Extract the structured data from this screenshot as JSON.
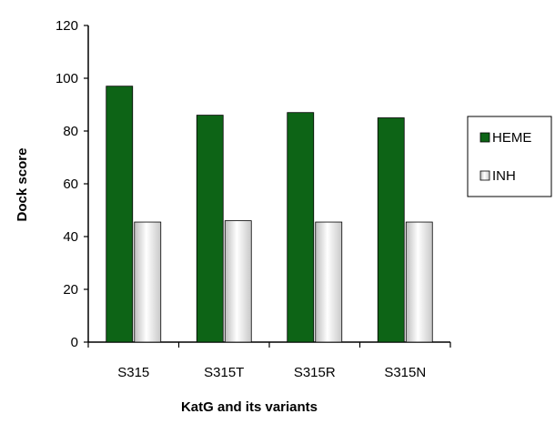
{
  "chart_data": {
    "type": "bar",
    "title": "",
    "xlabel": "KatG  and its  variants",
    "ylabel": "Dock score",
    "categories": [
      "S315",
      "S315T",
      "S315R",
      "S315N"
    ],
    "series": [
      {
        "name": "HEME",
        "values": [
          97,
          86,
          87,
          85
        ],
        "color": "#0d6416"
      },
      {
        "name": "INH",
        "values": [
          45.5,
          46,
          45.5,
          45.5
        ],
        "color": "#e0e0e0"
      }
    ],
    "ylim": [
      0,
      120
    ],
    "yticks": [
      "0",
      "20",
      "40",
      "60",
      "80",
      "100",
      "120"
    ],
    "grid": false,
    "legend": "right"
  }
}
